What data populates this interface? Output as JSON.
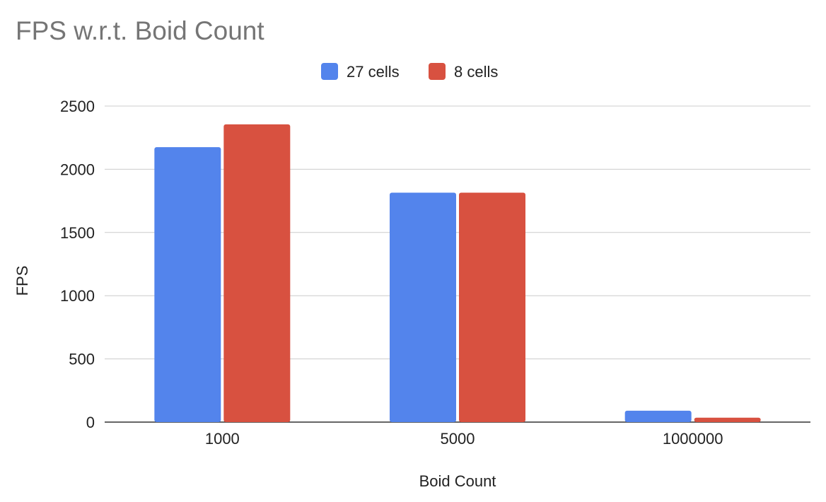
{
  "chart_data": {
    "type": "bar",
    "title": "FPS w.r.t. Boid Count",
    "xlabel": "Boid Count",
    "ylabel": "FPS",
    "categories": [
      "1000",
      "5000",
      "1000000"
    ],
    "series": [
      {
        "name": "27 cells",
        "color": "#5384EC",
        "values": [
          2175,
          1815,
          90
        ]
      },
      {
        "name": "8 cells",
        "color": "#D85140",
        "values": [
          2355,
          1815,
          35
        ]
      }
    ],
    "ylim": [
      0,
      2500
    ],
    "yticks": [
      0,
      500,
      1000,
      1500,
      2000,
      2500
    ],
    "grid": true,
    "legend_position": "top-center"
  }
}
